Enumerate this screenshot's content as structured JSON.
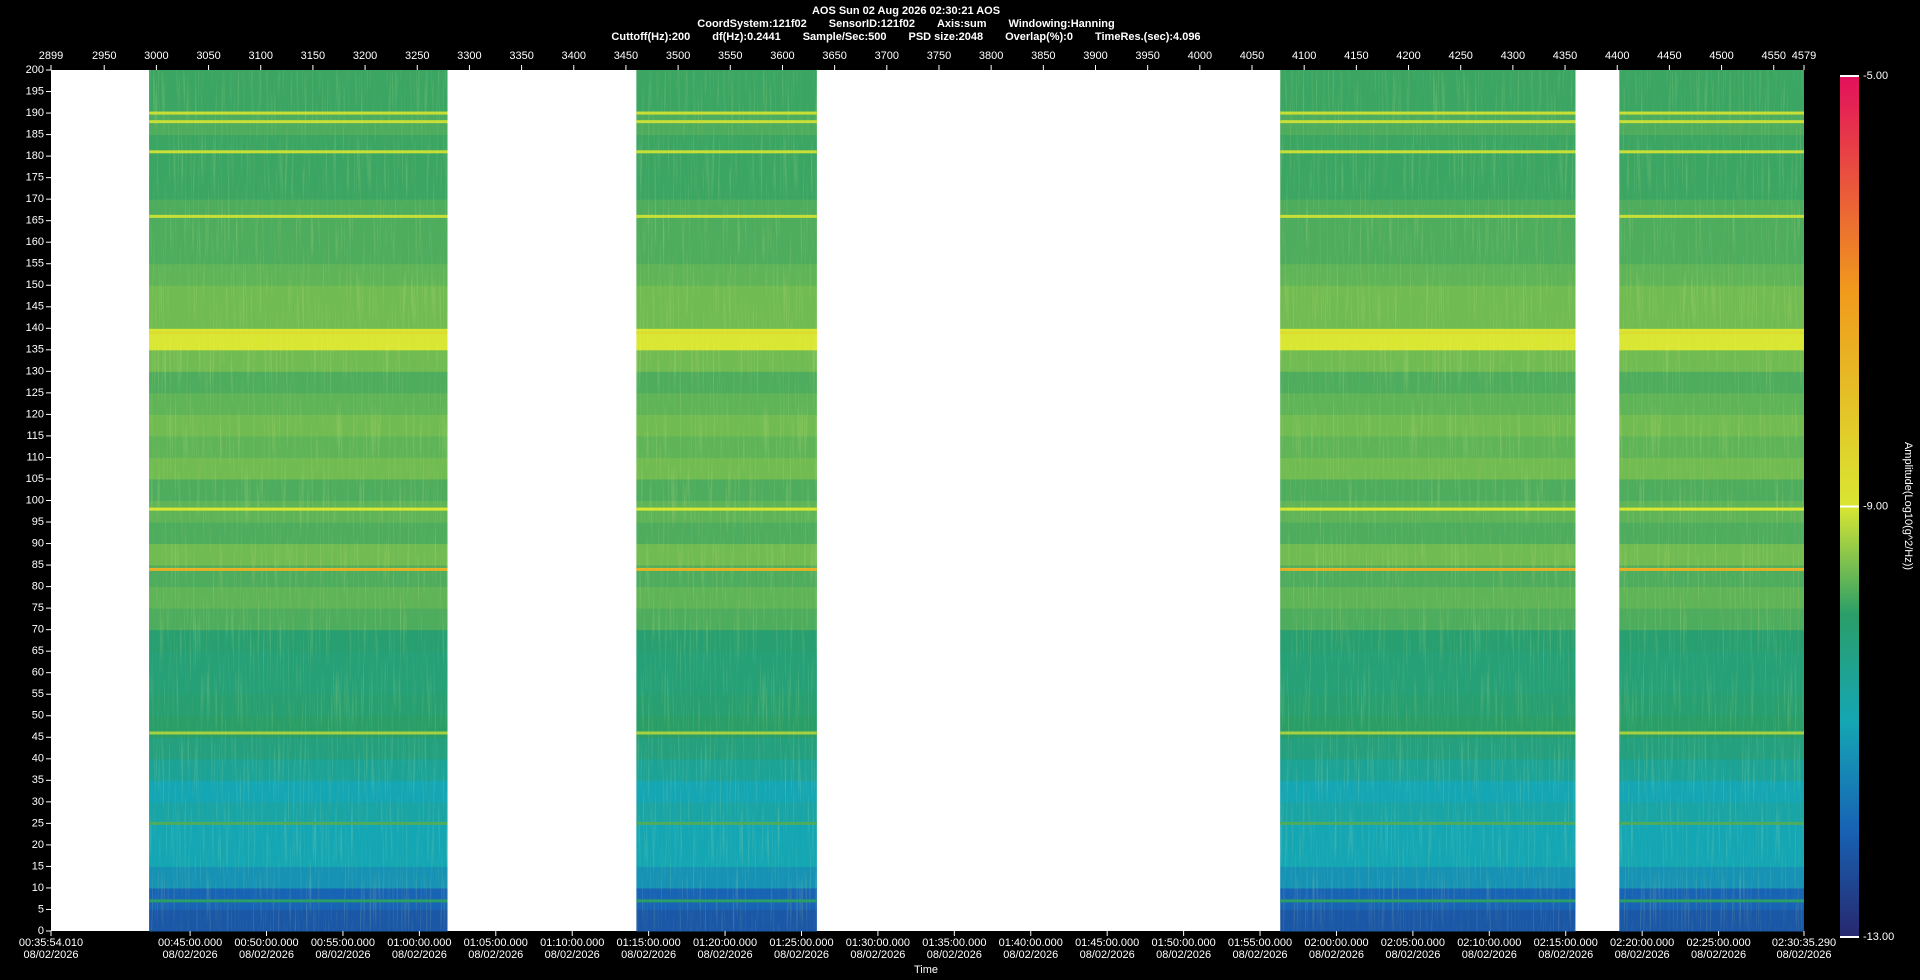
{
  "chart_data": {
    "type": "heatmap",
    "title": "AOS  Sun 02 Aug 2026 02:30:21  AOS",
    "header_line1": [
      "CoordSystem:121f02",
      "SensorID:121f02",
      "Axis:sum",
      "Windowing:Hanning"
    ],
    "header_line2": [
      "Cuttoff(Hz):200",
      "df(Hz):0.2441",
      "Sample/Sec:500",
      "PSD size:2048",
      "Overlap(%):0",
      "TimeRes.(sec):4.096"
    ],
    "xlim": [
      2899,
      4579
    ],
    "xticks": [
      2899,
      2950,
      3000,
      3050,
      3100,
      3150,
      3200,
      3250,
      3300,
      3350,
      3400,
      3450,
      3500,
      3550,
      3600,
      3650,
      3700,
      3750,
      3800,
      3850,
      3900,
      3950,
      4000,
      4050,
      4100,
      4150,
      4200,
      4250,
      4300,
      4350,
      4400,
      4450,
      4500,
      4550,
      4579
    ],
    "x2_label": "Time",
    "x2lim": [
      2154.01,
      9035.29
    ],
    "x2ticks": [
      {
        "value": 2154.01,
        "label": "00:35:54.010",
        "date": "08/02/2026"
      },
      {
        "value": 2700,
        "label": "00:45:00.000",
        "date": "08/02/2026"
      },
      {
        "value": 3000,
        "label": "00:50:00.000",
        "date": "08/02/2026"
      },
      {
        "value": 3300,
        "label": "00:55:00.000",
        "date": "08/02/2026"
      },
      {
        "value": 3600,
        "label": "01:00:00.000",
        "date": "08/02/2026"
      },
      {
        "value": 3900,
        "label": "01:05:00.000",
        "date": "08/02/2026"
      },
      {
        "value": 4200,
        "label": "01:10:00.000",
        "date": "08/02/2026"
      },
      {
        "value": 4500,
        "label": "01:15:00.000",
        "date": "08/02/2026"
      },
      {
        "value": 4800,
        "label": "01:20:00.000",
        "date": "08/02/2026"
      },
      {
        "value": 5100,
        "label": "01:25:00.000",
        "date": "08/02/2026"
      },
      {
        "value": 5400,
        "label": "01:30:00.000",
        "date": "08/02/2026"
      },
      {
        "value": 5700,
        "label": "01:35:00.000",
        "date": "08/02/2026"
      },
      {
        "value": 6000,
        "label": "01:40:00.000",
        "date": "08/02/2026"
      },
      {
        "value": 6300,
        "label": "01:45:00.000",
        "date": "08/02/2026"
      },
      {
        "value": 6600,
        "label": "01:50:00.000",
        "date": "08/02/2026"
      },
      {
        "value": 6900,
        "label": "01:55:00.000",
        "date": "08/02/2026"
      },
      {
        "value": 7200,
        "label": "02:00:00.000",
        "date": "08/02/2026"
      },
      {
        "value": 7500,
        "label": "02:05:00.000",
        "date": "08/02/2026"
      },
      {
        "value": 7800,
        "label": "02:10:00.000",
        "date": "08/02/2026"
      },
      {
        "value": 8100,
        "label": "02:15:00.000",
        "date": "08/02/2026"
      },
      {
        "value": 8400,
        "label": "02:20:00.000",
        "date": "08/02/2026"
      },
      {
        "value": 8700,
        "label": "02:25:00.000",
        "date": "08/02/2026"
      },
      {
        "value": 9035.29,
        "label": "02:30:35.290",
        "date": "08/02/2026"
      }
    ],
    "ylim": [
      0,
      200
    ],
    "yticks": [
      0,
      5,
      10,
      15,
      20,
      25,
      30,
      35,
      40,
      45,
      50,
      55,
      60,
      65,
      70,
      75,
      80,
      85,
      90,
      95,
      100,
      105,
      110,
      115,
      120,
      125,
      130,
      135,
      140,
      145,
      150,
      155,
      160,
      165,
      170,
      175,
      180,
      185,
      190,
      195,
      200
    ],
    "segments": [
      [
        2993,
        3279
      ],
      [
        3460,
        3633
      ],
      [
        4077,
        4360
      ],
      [
        4402,
        4579
      ]
    ],
    "bins": [
      0,
      5,
      10,
      15,
      20,
      25,
      30,
      35,
      40,
      45,
      50,
      55,
      60,
      65,
      70,
      75,
      80,
      85,
      90,
      95,
      100,
      105,
      110,
      115,
      120,
      125,
      130,
      135,
      140,
      145,
      150,
      155,
      160,
      165,
      170,
      175,
      180,
      185,
      190,
      195,
      200
    ],
    "amplitude": [
      -12.2,
      -12,
      -11.3,
      -11,
      -11,
      -10.8,
      -11,
      -10.6,
      -10.3,
      -10,
      -10.1,
      -10.2,
      -10.2,
      -10.1,
      -9.8,
      -9.7,
      -9.8,
      -9.6,
      -9.8,
      -9.7,
      -9.8,
      -9.6,
      -9.7,
      -9.6,
      -9.7,
      -9.8,
      -9.6,
      -9.0,
      -9.6,
      -9.6,
      -9.7,
      -9.8,
      -9.8,
      -9.8,
      -9.9,
      -9.9,
      -9.9,
      -9.8,
      -9.9,
      -9.9
    ],
    "lines": {
      "freq": [
        7,
        25,
        46,
        84,
        98,
        139,
        166,
        181,
        188,
        190
      ],
      "amplitude": [
        -10,
        -9.8,
        -9.3,
        -7.6,
        -9,
        -8.8,
        -9.1,
        -9.1,
        -9.1,
        -9.1
      ]
    },
    "colorbar_label": "Amplitude(Log10(g^2/Hz))",
    "clim": [
      -13,
      -5
    ],
    "cticks": [
      {
        "value": -5,
        "label": "-5.00"
      },
      {
        "value": -9,
        "label": "-9.00"
      },
      {
        "value": -13,
        "label": "-13.00"
      }
    ],
    "colorscale": [
      [
        -13,
        "#27286e"
      ],
      [
        -12,
        "#1763b4"
      ],
      [
        -11,
        "#15a6b4"
      ],
      [
        -10,
        "#2a9e68"
      ],
      [
        -9,
        "#d9e632"
      ],
      [
        -7,
        "#f09a1c"
      ],
      [
        -5,
        "#e3105c"
      ]
    ]
  }
}
